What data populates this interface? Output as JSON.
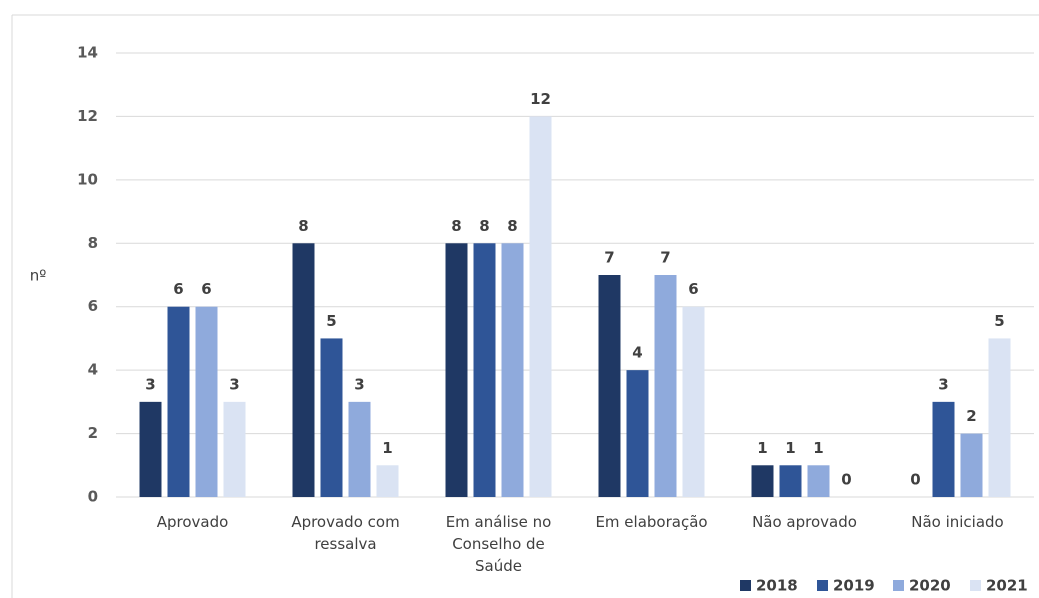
{
  "chart_data": {
    "type": "bar",
    "y_label": "nº",
    "categories": [
      "Aprovado",
      "Aprovado com ressalva",
      "Em análise no Conselho de Saúde",
      "Em elaboração",
      "Não aprovado",
      "Não iniciado"
    ],
    "series": [
      {
        "name": "2018",
        "color": "#1f3864",
        "values": [
          3,
          8,
          8,
          7,
          1,
          0
        ]
      },
      {
        "name": "2019",
        "color": "#2f5597",
        "values": [
          6,
          5,
          8,
          4,
          1,
          3
        ]
      },
      {
        "name": "2020",
        "color": "#8faadc",
        "values": [
          6,
          3,
          8,
          7,
          1,
          2
        ]
      },
      {
        "name": "2021",
        "color": "#dae3f3",
        "values": [
          3,
          1,
          12,
          6,
          0,
          5
        ]
      }
    ],
    "ylim": [
      0,
      14
    ],
    "yticks": [
      0,
      2,
      4,
      6,
      8,
      10,
      12,
      14
    ],
    "grid": true,
    "legend": "bottom-right"
  }
}
